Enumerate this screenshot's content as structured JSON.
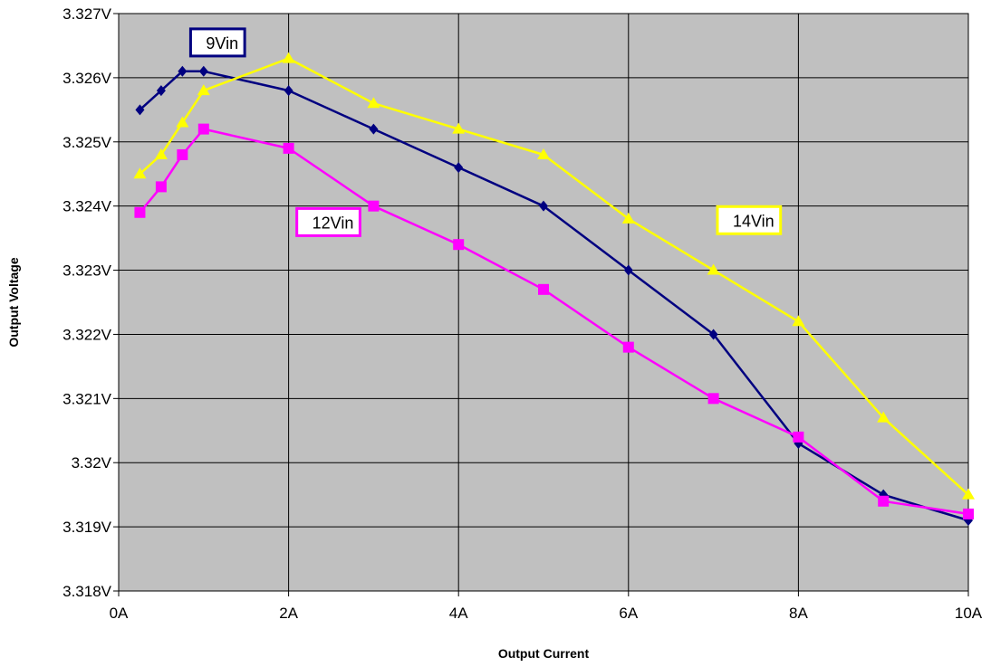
{
  "chart_data": {
    "type": "line",
    "xlabel": "Output Current",
    "ylabel": "Output Voltage",
    "xlim": [
      0,
      10
    ],
    "ylim": [
      3.318,
      3.327
    ],
    "grid": true,
    "plot_background": "#c0c0c0",
    "x_ticks": [
      {
        "value": 0,
        "label": "0A"
      },
      {
        "value": 2,
        "label": "2A"
      },
      {
        "value": 4,
        "label": "4A"
      },
      {
        "value": 6,
        "label": "6A"
      },
      {
        "value": 8,
        "label": "8A"
      },
      {
        "value": 10,
        "label": "10A"
      }
    ],
    "y_ticks": [
      {
        "value": 3.318,
        "label": "3.318V"
      },
      {
        "value": 3.319,
        "label": "3.319V"
      },
      {
        "value": 3.32,
        "label": "3.32V"
      },
      {
        "value": 3.321,
        "label": "3.321V"
      },
      {
        "value": 3.322,
        "label": "3.322V"
      },
      {
        "value": 3.323,
        "label": "3.323V"
      },
      {
        "value": 3.324,
        "label": "3.324V"
      },
      {
        "value": 3.325,
        "label": "3.325V"
      },
      {
        "value": 3.326,
        "label": "3.326V"
      },
      {
        "value": 3.327,
        "label": "3.327V"
      }
    ],
    "series": [
      {
        "name": "9Vin",
        "key": "9vin",
        "color": "#000080",
        "marker": "diamond",
        "x": [
          0.25,
          0.5,
          0.75,
          1,
          2,
          3,
          4,
          5,
          6,
          7,
          8,
          9,
          10
        ],
        "y": [
          3.3255,
          3.3258,
          3.3261,
          3.3261,
          3.3258,
          3.3252,
          3.3246,
          3.324,
          3.323,
          3.322,
          3.3203,
          3.3195,
          3.3191
        ],
        "label_anchor": {
          "x": 0.9,
          "y": 3.32655
        }
      },
      {
        "name": "12Vin",
        "key": "12vin",
        "color": "#ff00ff",
        "marker": "square",
        "x": [
          0.25,
          0.5,
          0.75,
          1,
          2,
          3,
          4,
          5,
          6,
          7,
          8,
          9,
          10
        ],
        "y": [
          3.3239,
          3.3243,
          3.3248,
          3.3252,
          3.3249,
          3.324,
          3.3234,
          3.3227,
          3.3218,
          3.321,
          3.3204,
          3.3194,
          3.3192
        ],
        "label_anchor": {
          "x": 2.15,
          "y": 3.32375
        }
      },
      {
        "name": "14Vin",
        "key": "14vin",
        "color": "#ffff00",
        "marker": "triangle",
        "x": [
          0.25,
          0.5,
          0.75,
          1,
          2,
          3,
          4,
          5,
          6,
          7,
          8,
          9,
          10
        ],
        "y": [
          3.3245,
          3.3248,
          3.3253,
          3.3258,
          3.3263,
          3.3256,
          3.3252,
          3.3248,
          3.3238,
          3.323,
          3.3222,
          3.3207,
          3.3195
        ],
        "label_anchor": {
          "x": 7.1,
          "y": 3.32378
        }
      }
    ]
  }
}
